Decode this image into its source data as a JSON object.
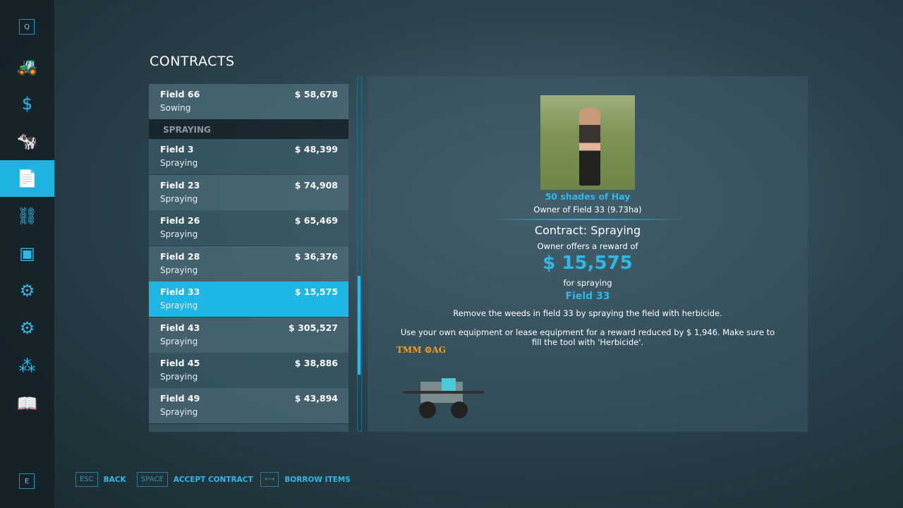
{
  "sidebar": {
    "top_key": "Q",
    "bottom_key": "E",
    "items": [
      {
        "icon": "tractor-icon"
      },
      {
        "icon": "dollar-icon"
      },
      {
        "icon": "cow-icon"
      },
      {
        "icon": "contracts-icon",
        "active": true
      },
      {
        "icon": "production-icon"
      },
      {
        "icon": "tutorial-icon"
      },
      {
        "icon": "vehicle-settings-icon"
      },
      {
        "icon": "gear-icon"
      },
      {
        "icon": "hierarchy-icon"
      },
      {
        "icon": "help-book-icon"
      }
    ]
  },
  "page": {
    "title": "CONTRACTS"
  },
  "list": {
    "section_header": "SPRAYING",
    "rows": [
      {
        "field": "Field 66",
        "type": "Sowing",
        "price": "$ 58,678"
      },
      {
        "field": "Field 3",
        "type": "Spraying",
        "price": "$ 48,399"
      },
      {
        "field": "Field 23",
        "type": "Spraying",
        "price": "$ 74,908"
      },
      {
        "field": "Field 26",
        "type": "Spraying",
        "price": "$ 65,469"
      },
      {
        "field": "Field 28",
        "type": "Spraying",
        "price": "$ 36,376"
      },
      {
        "field": "Field 33",
        "type": "Spraying",
        "price": "$ 15,575",
        "selected": true
      },
      {
        "field": "Field 43",
        "type": "Spraying",
        "price": "$ 305,527"
      },
      {
        "field": "Field 45",
        "type": "Spraying",
        "price": "$ 38,886"
      },
      {
        "field": "Field 49",
        "type": "Spraying",
        "price": "$ 43,894"
      }
    ]
  },
  "detail": {
    "npc_name": "50 shades of Hay",
    "owner": "Owner of Field 33 (9.73ha)",
    "contract": "Contract: Spraying",
    "offer": "Owner offers a reward of",
    "reward": "$ 15,575",
    "for": "for spraying",
    "field": "Field 33",
    "description": "Remove the weeds in field 33 by spraying the field with herbicide.",
    "lease_note": "Use your own equipment or lease equipment for a reward reduced by $ 1,946. Make sure to fill the tool with 'Herbicide'.",
    "brand": "TMM ⚙AG"
  },
  "footer": [
    {
      "key": "ESC",
      "label": "BACK"
    },
    {
      "key": "SPACE",
      "label": "ACCEPT CONTRACT"
    },
    {
      "key": "⟷",
      "label": "BORROW ITEMS"
    }
  ],
  "colors": {
    "accent": "#1eb6e4"
  }
}
